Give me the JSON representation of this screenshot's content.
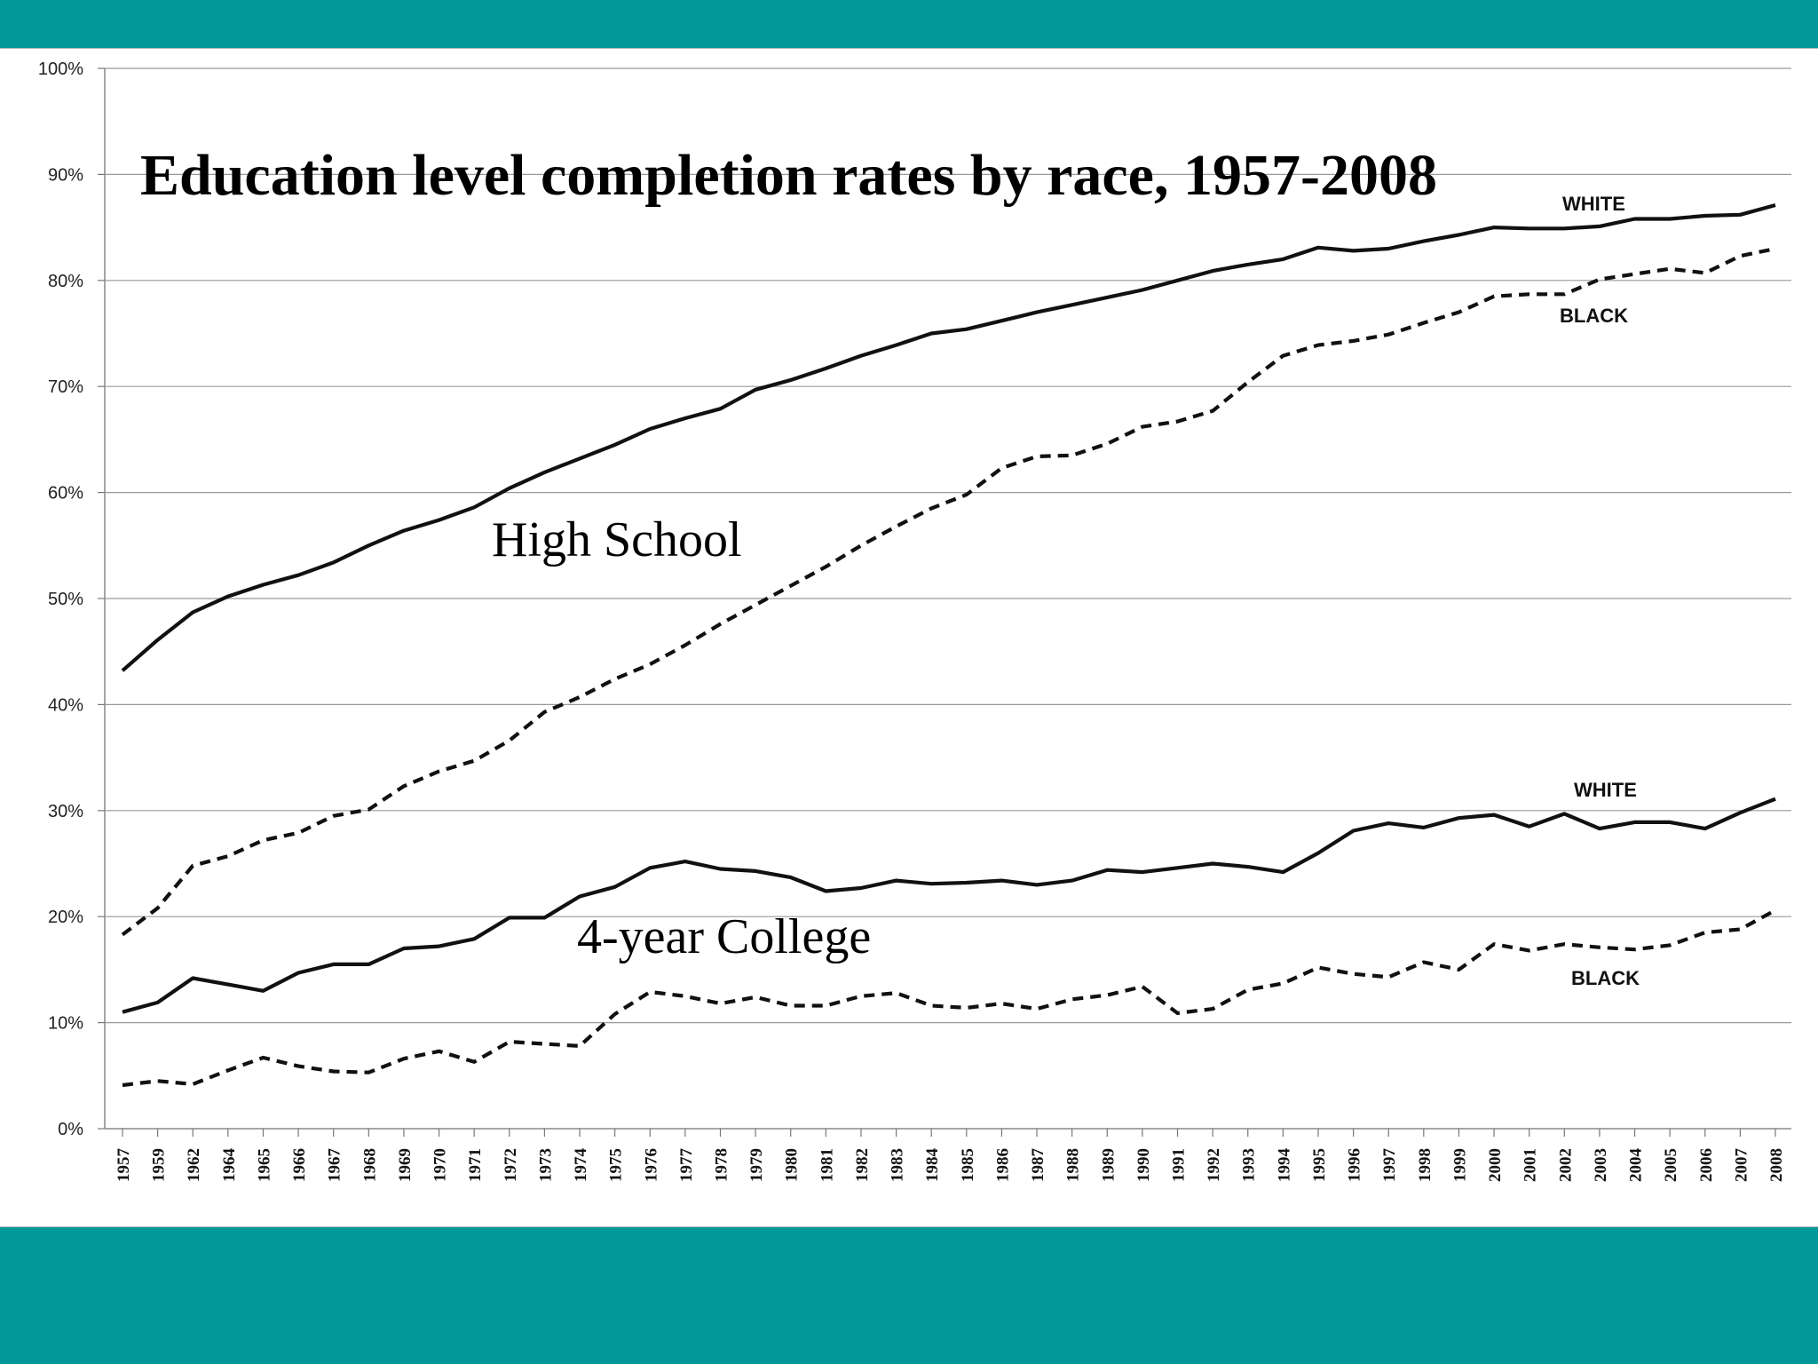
{
  "slide": {
    "background_color": "#02989a",
    "panel_color": "#ffffff"
  },
  "chart_data": {
    "type": "line",
    "title": "Education level completion rates by race, 1957-2008",
    "xlabel": "",
    "ylabel": "",
    "ylim": [
      0,
      100
    ],
    "y_ticks": [
      "0%",
      "10%",
      "20%",
      "30%",
      "40%",
      "50%",
      "60%",
      "70%",
      "80%",
      "90%",
      "100%"
    ],
    "grid": true,
    "x": [
      "1957",
      "1959",
      "1962",
      "1964",
      "1965",
      "1966",
      "1967",
      "1968",
      "1969",
      "1970",
      "1971",
      "1972",
      "1973",
      "1974",
      "1975",
      "1976",
      "1977",
      "1978",
      "1979",
      "1980",
      "1981",
      "1982",
      "1983",
      "1984",
      "1985",
      "1986",
      "1987",
      "1988",
      "1989",
      "1990",
      "1991",
      "1992",
      "1993",
      "1994",
      "1995",
      "1996",
      "1997",
      "1998",
      "1999",
      "2000",
      "2001",
      "2002",
      "2003",
      "2004",
      "2005",
      "2006",
      "2007",
      "2008"
    ],
    "groups": [
      {
        "label": "High School"
      },
      {
        "label": "4-year College"
      }
    ],
    "series": [
      {
        "name": "WHITE",
        "group": "High School",
        "style": "solid",
        "values": [
          43.2,
          46.1,
          48.7,
          50.2,
          51.3,
          52.2,
          53.4,
          55.0,
          56.4,
          57.4,
          58.6,
          60.4,
          61.9,
          63.2,
          64.5,
          66.0,
          67.0,
          67.9,
          69.7,
          70.6,
          71.7,
          72.9,
          73.9,
          75.0,
          75.4,
          76.2,
          77.0,
          77.7,
          78.4,
          79.1,
          80.0,
          80.9,
          81.5,
          82.0,
          83.1,
          82.8,
          83.0,
          83.7,
          84.3,
          85.0,
          84.9,
          84.9,
          85.1,
          85.8,
          85.8,
          86.1,
          86.2,
          87.1
        ]
      },
      {
        "name": "BLACK",
        "group": "High School",
        "style": "dashed",
        "values": [
          18.3,
          20.8,
          24.8,
          25.7,
          27.2,
          27.9,
          29.5,
          30.1,
          32.3,
          33.7,
          34.7,
          36.6,
          39.3,
          40.7,
          42.4,
          43.8,
          45.6,
          47.6,
          49.4,
          51.2,
          53.0,
          55.0,
          56.8,
          58.5,
          59.8,
          62.3,
          63.4,
          63.5,
          64.6,
          66.2,
          66.7,
          67.7,
          70.4,
          72.9,
          73.9,
          74.3,
          74.9,
          76.0,
          77.0,
          78.5,
          78.7,
          78.7,
          80.1,
          80.6,
          81.1,
          80.7,
          82.3,
          83.0
        ]
      },
      {
        "name": "WHITE",
        "group": "4-year College",
        "style": "solid",
        "values": [
          11.0,
          11.9,
          14.2,
          13.6,
          13.0,
          14.7,
          15.5,
          15.5,
          17.0,
          17.2,
          17.9,
          19.9,
          19.9,
          21.9,
          22.8,
          24.6,
          25.2,
          24.5,
          24.3,
          23.7,
          22.4,
          22.7,
          23.4,
          23.1,
          23.2,
          23.4,
          23.0,
          23.4,
          24.4,
          24.2,
          24.6,
          25.0,
          24.7,
          24.2,
          26.0,
          28.1,
          28.8,
          28.4,
          29.3,
          29.6,
          28.5,
          29.7,
          28.3,
          28.9,
          28.9,
          28.3,
          29.8,
          31.1
        ]
      },
      {
        "name": "BLACK",
        "group": "4-year College",
        "style": "dashed",
        "values": [
          4.1,
          4.5,
          4.2,
          5.5,
          6.7,
          5.9,
          5.4,
          5.3,
          6.6,
          7.3,
          6.3,
          8.2,
          8.0,
          7.8,
          10.8,
          12.9,
          12.5,
          11.8,
          12.4,
          11.6,
          11.6,
          12.5,
          12.8,
          11.6,
          11.4,
          11.8,
          11.3,
          12.2,
          12.6,
          13.4,
          10.9,
          11.3,
          13.1,
          13.7,
          15.2,
          14.6,
          14.3,
          15.7,
          15.0,
          17.4,
          16.8,
          17.4,
          17.1,
          16.9,
          17.3,
          18.5,
          18.8,
          20.6
        ]
      }
    ]
  }
}
